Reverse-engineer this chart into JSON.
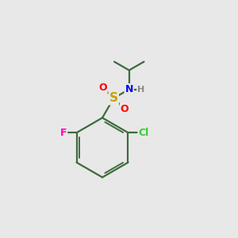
{
  "background_color": "#e8e8e8",
  "bond_color": "#3d6b3d",
  "atom_colors": {
    "S": "#c8a000",
    "O": "#ff0000",
    "N": "#0000ff",
    "H": "#888888",
    "F": "#ff00bb",
    "Cl": "#33cc33"
  },
  "figsize": [
    3.0,
    3.0
  ],
  "dpi": 100
}
